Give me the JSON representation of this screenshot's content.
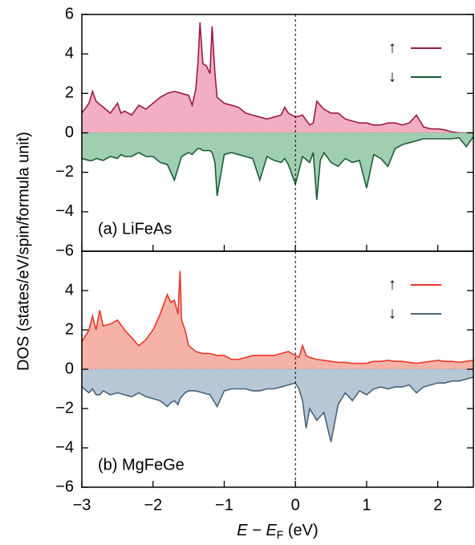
{
  "ylabel": "DOS (states/eV/spin/formula unit)",
  "xlabel": [
    "E",
    " − ",
    "E",
    "F",
    " (eV)"
  ],
  "chart_data": [
    {
      "type": "area",
      "annotation": "(a) LiFeAs",
      "xlim": [
        -3,
        2.5
      ],
      "ylim": [
        -6,
        6
      ],
      "yticks": [
        {
          "value": -6,
          "label": "−6"
        },
        {
          "value": -4,
          "label": "−4"
        },
        {
          "value": -2,
          "label": "−2"
        },
        0,
        2,
        4,
        6
      ],
      "vline": 0,
      "x": [
        -3.0,
        -2.9,
        -2.85,
        -2.8,
        -2.7,
        -2.6,
        -2.5,
        -2.45,
        -2.4,
        -2.3,
        -2.2,
        -2.1,
        -2.0,
        -1.9,
        -1.8,
        -1.7,
        -1.6,
        -1.5,
        -1.45,
        -1.4,
        -1.37,
        -1.34,
        -1.3,
        -1.25,
        -1.2,
        -1.17,
        -1.13,
        -1.1,
        -1.0,
        -0.9,
        -0.8,
        -0.7,
        -0.6,
        -0.5,
        -0.4,
        -0.3,
        -0.2,
        -0.15,
        -0.1,
        0.0,
        0.1,
        0.2,
        0.25,
        0.3,
        0.35,
        0.4,
        0.5,
        0.6,
        0.7,
        0.8,
        0.9,
        1.0,
        1.1,
        1.2,
        1.3,
        1.4,
        1.5,
        1.6,
        1.7,
        1.8,
        1.9,
        2.0,
        2.1,
        2.2,
        2.3,
        2.4,
        2.5
      ],
      "series": [
        {
          "name": "↑",
          "color": "#9b1b45",
          "fill": "#f2afc3",
          "values": [
            1.0,
            1.5,
            2.1,
            1.6,
            1.3,
            1.0,
            1.5,
            1.0,
            1.1,
            0.9,
            1.4,
            1.2,
            1.5,
            1.8,
            2.0,
            2.1,
            2.0,
            1.9,
            1.4,
            2.2,
            3.5,
            5.6,
            3.5,
            3.4,
            3.0,
            5.4,
            3.0,
            1.8,
            1.5,
            1.4,
            1.3,
            1.0,
            0.9,
            0.8,
            0.7,
            0.8,
            0.9,
            1.3,
            1.0,
            0.8,
            0.9,
            0.4,
            0.5,
            1.6,
            1.4,
            1.2,
            1.0,
            1.0,
            0.7,
            0.6,
            0.5,
            0.5,
            0.4,
            0.4,
            0.5,
            0.5,
            0.4,
            0.5,
            0.9,
            0.3,
            0.2,
            0.2,
            0.15,
            0.05,
            0.0,
            0.0,
            0.0
          ]
        },
        {
          "name": "↓",
          "color": "#1e5c3a",
          "fill": "#9fcfb0",
          "values": [
            -1.3,
            -1.4,
            -1.4,
            -1.3,
            -1.4,
            -1.2,
            -1.3,
            -1.1,
            -1.2,
            -1.2,
            -1.0,
            -1.2,
            -1.2,
            -1.5,
            -1.6,
            -2.4,
            -1.2,
            -1.0,
            -1.1,
            -0.9,
            -0.8,
            -0.8,
            -0.9,
            -0.9,
            -0.9,
            -1.0,
            -1.5,
            -3.2,
            -1.1,
            -1.0,
            -1.1,
            -1.2,
            -1.3,
            -2.4,
            -1.2,
            -1.4,
            -1.5,
            -1.3,
            -1.6,
            -2.6,
            -1.2,
            -1.5,
            -1.0,
            -3.4,
            -1.4,
            -1.0,
            -1.5,
            -1.7,
            -1.3,
            -1.5,
            -1.4,
            -2.8,
            -1.1,
            -1.3,
            -1.7,
            -0.8,
            -0.6,
            -0.5,
            -0.4,
            -0.3,
            -0.3,
            -0.3,
            -0.3,
            -0.3,
            -0.25,
            -0.7,
            -0.2
          ]
        }
      ]
    },
    {
      "type": "area",
      "annotation": "(b) MgFeGe",
      "xlim": [
        -3,
        2.5
      ],
      "ylim": [
        -6,
        6
      ],
      "yticks": [
        {
          "value": -6,
          "label": "−6"
        },
        {
          "value": -4,
          "label": "−4"
        },
        {
          "value": -2,
          "label": "−2"
        },
        0,
        2,
        4
      ],
      "xticks": [
        {
          "value": -3,
          "label": "−3"
        },
        {
          "value": -2,
          "label": "−2"
        },
        {
          "value": -1,
          "label": "−1"
        },
        0,
        1,
        2
      ],
      "vline": 0,
      "x": [
        -3.0,
        -2.9,
        -2.85,
        -2.8,
        -2.75,
        -2.7,
        -2.6,
        -2.5,
        -2.4,
        -2.3,
        -2.2,
        -2.1,
        -2.0,
        -1.9,
        -1.8,
        -1.75,
        -1.7,
        -1.65,
        -1.62,
        -1.6,
        -1.55,
        -1.5,
        -1.4,
        -1.3,
        -1.2,
        -1.1,
        -1.0,
        -0.9,
        -0.8,
        -0.7,
        -0.6,
        -0.5,
        -0.4,
        -0.3,
        -0.2,
        -0.1,
        0.0,
        0.05,
        0.1,
        0.15,
        0.2,
        0.3,
        0.4,
        0.5,
        0.6,
        0.7,
        0.8,
        0.9,
        1.0,
        1.1,
        1.2,
        1.3,
        1.4,
        1.5,
        1.6,
        1.7,
        1.8,
        1.9,
        2.0,
        2.1,
        2.2,
        2.3,
        2.4,
        2.5
      ],
      "series": [
        {
          "name": "↑",
          "color": "#e8372c",
          "fill": "#f5b3a8",
          "values": [
            1.4,
            2.0,
            2.7,
            2.0,
            3.0,
            2.2,
            2.3,
            2.5,
            2.0,
            1.6,
            1.2,
            1.5,
            2.0,
            2.8,
            3.8,
            3.4,
            3.5,
            2.8,
            5.0,
            2.5,
            2.0,
            1.2,
            0.9,
            0.8,
            0.8,
            0.7,
            0.7,
            0.5,
            0.5,
            0.6,
            0.7,
            0.7,
            0.7,
            0.7,
            0.8,
            0.9,
            0.7,
            0.6,
            1.2,
            0.7,
            0.6,
            0.5,
            0.45,
            0.4,
            0.35,
            0.35,
            0.3,
            0.3,
            0.3,
            0.4,
            0.4,
            0.45,
            0.4,
            0.4,
            0.35,
            0.3,
            0.35,
            0.4,
            0.45,
            0.4,
            0.4,
            0.35,
            0.4,
            0.45
          ]
        },
        {
          "name": "↓",
          "color": "#4a6478",
          "fill": "#b7c7d6",
          "values": [
            -0.9,
            -1.2,
            -1.0,
            -1.3,
            -1.3,
            -1.1,
            -1.3,
            -1.2,
            -1.3,
            -1.4,
            -1.2,
            -1.4,
            -1.5,
            -1.6,
            -1.9,
            -1.7,
            -1.6,
            -1.8,
            -1.5,
            -1.4,
            -1.2,
            -1.1,
            -1.1,
            -1.2,
            -1.3,
            -1.9,
            -1.1,
            -1.0,
            -1.0,
            -1.0,
            -1.1,
            -1.1,
            -1.0,
            -1.0,
            -0.9,
            -0.8,
            -0.7,
            -1.0,
            -1.6,
            -3.0,
            -2.0,
            -2.6,
            -2.2,
            -3.7,
            -1.8,
            -1.2,
            -1.6,
            -1.1,
            -1.3,
            -1.0,
            -0.9,
            -1.0,
            -0.9,
            -0.9,
            -0.8,
            -1.2,
            -0.9,
            -0.8,
            -0.7,
            -0.7,
            -0.6,
            -0.6,
            -0.5,
            -0.4
          ]
        }
      ]
    }
  ]
}
